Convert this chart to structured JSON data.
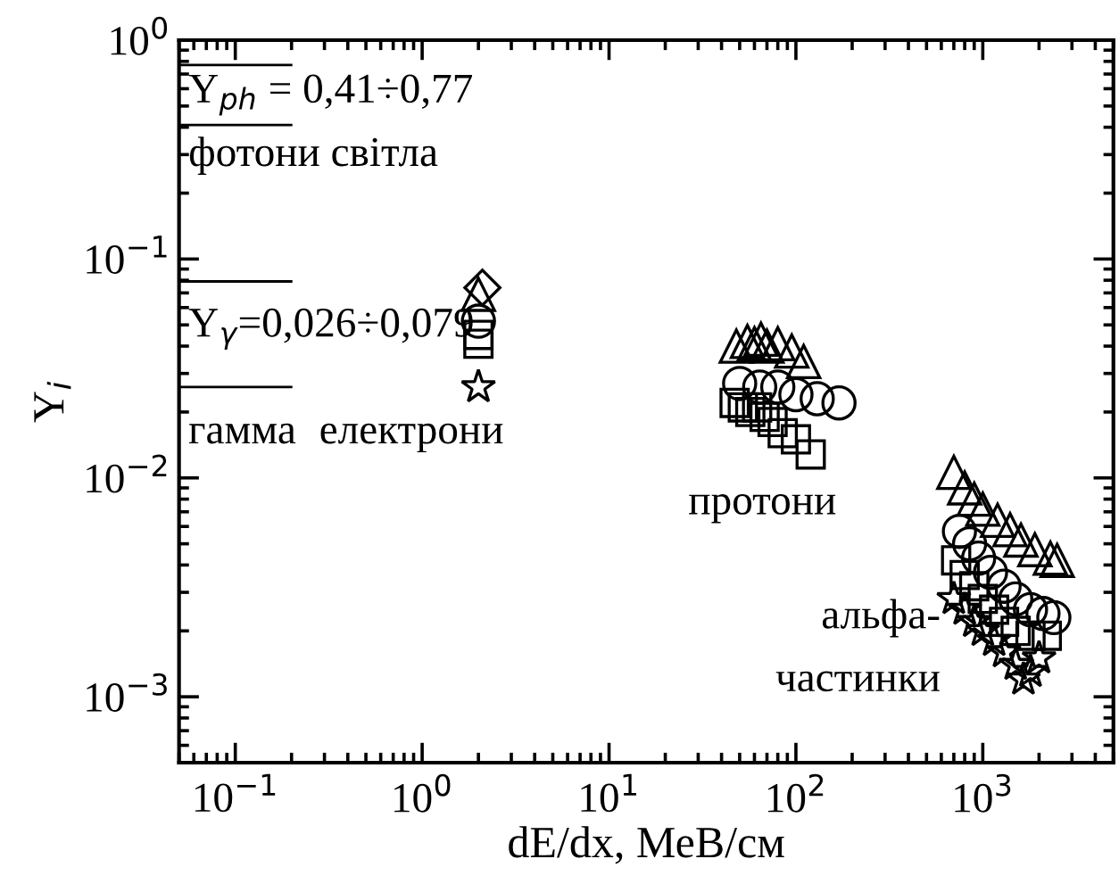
{
  "chart_data": {
    "type": "scatter",
    "xlabel": "dE/dx, МеВ/см",
    "ylabel": "Y$_{i}$",
    "log": "xy",
    "grid": false,
    "legend": false,
    "xlim": [
      0.05,
      5000
    ],
    "ylim": [
      0.0005,
      1
    ],
    "xticks": [
      {
        "value": 0.1,
        "label": "10$^{−1}$"
      },
      {
        "value": 1,
        "label": "10$^{0}$"
      },
      {
        "value": 10,
        "label": "10$^{1}$"
      },
      {
        "value": 100,
        "label": "10$^{2}$"
      },
      {
        "value": 1000,
        "label": "10$^{3}$"
      }
    ],
    "yticks": [
      {
        "value": 0.001,
        "label": "10$^{−3}$"
      },
      {
        "value": 0.01,
        "label": "10$^{−2}$"
      },
      {
        "value": 0.1,
        "label": "10$^{−1}$"
      },
      {
        "value": 1,
        "label": "10$^{0}$"
      }
    ],
    "series": [
      {
        "marker": "triangle",
        "color": "#000000",
        "x": [
          2,
          48,
          55,
          60,
          65,
          70,
          80,
          95,
          110,
          700,
          800,
          900,
          1000,
          1200,
          1400,
          1600,
          1900,
          2300,
          2500
        ],
        "values": [
          0.069,
          0.04,
          0.042,
          0.041,
          0.043,
          0.04,
          0.041,
          0.038,
          0.034,
          0.0106,
          0.009,
          0.008,
          0.0072,
          0.0064,
          0.0058,
          0.0052,
          0.0047,
          0.0043,
          0.0042
        ]
      },
      {
        "marker": "diamond",
        "color": "#000000",
        "x": [
          2.1
        ],
        "values": [
          0.074
        ]
      },
      {
        "marker": "circle",
        "color": "#000000",
        "x": [
          2,
          50,
          64,
          80,
          100,
          130,
          170,
          750,
          850,
          950,
          1100,
          1300,
          1500,
          1800,
          2100,
          2400
        ],
        "values": [
          0.052,
          0.027,
          0.026,
          0.026,
          0.024,
          0.023,
          0.022,
          0.0057,
          0.005,
          0.0043,
          0.0037,
          0.0032,
          0.0028,
          0.0025,
          0.0024,
          0.0023
        ]
      },
      {
        "marker": "square",
        "color": "#000000",
        "x": [
          2,
          2,
          47,
          52,
          57,
          62,
          68,
          75,
          85,
          100,
          120,
          720,
          800,
          900,
          1000,
          1150,
          1300,
          1500,
          1800,
          2200
        ],
        "values": [
          0.045,
          0.041,
          0.022,
          0.021,
          0.02,
          0.021,
          0.019,
          0.018,
          0.016,
          0.015,
          0.0128,
          0.0042,
          0.0036,
          0.0032,
          0.0028,
          0.0025,
          0.0022,
          0.002,
          0.0019,
          0.0019
        ]
      },
      {
        "marker": "star",
        "color": "#000000",
        "x": [
          2,
          700,
          800,
          900,
          1000,
          1150,
          1300,
          1500,
          1650,
          1800,
          2000
        ],
        "values": [
          0.026,
          0.0028,
          0.0025,
          0.0022,
          0.002,
          0.0018,
          0.0016,
          0.0014,
          0.0012,
          0.0013,
          0.0015
        ]
      }
    ],
    "ref_lines": [
      {
        "axis": "y",
        "value": 0.77
      },
      {
        "axis": "y",
        "value": 0.41
      },
      {
        "axis": "y",
        "value": 0.079
      },
      {
        "axis": "y",
        "value": 0.026
      }
    ],
    "annotations": [
      "Y$_{ph}$ = 0,41÷0,77",
      "фотони світла",
      "Y$_{γ}$=0,026÷0,079",
      "гамма",
      "електрони",
      "протони",
      "альфа-",
      "частинки"
    ]
  }
}
